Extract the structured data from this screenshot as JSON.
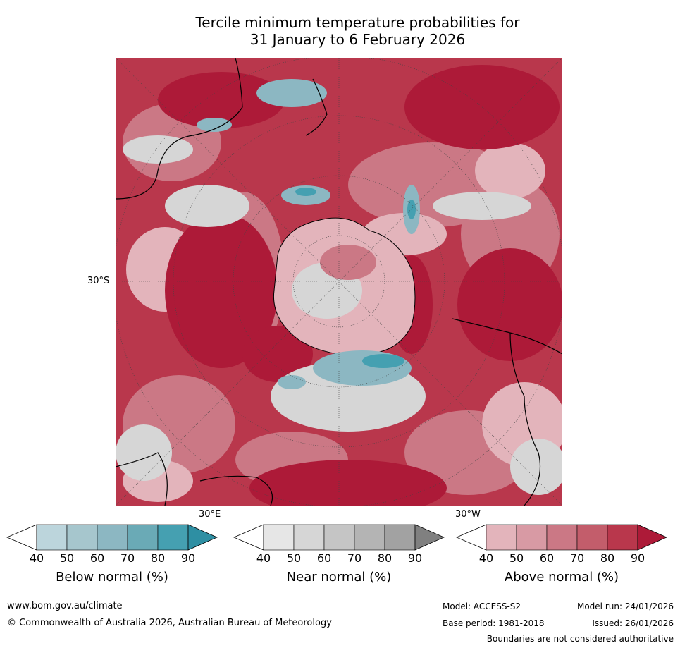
{
  "title_line1": "Tercile minimum temperature probabilities for",
  "title_line2": "31 January to 6 February 2026",
  "axis_labels": {
    "lat": "30°S",
    "lon_east": "30°E",
    "lon_west": "30°W"
  },
  "legend": [
    {
      "title": "Below normal (%)",
      "ticks": [
        "40",
        "50",
        "60",
        "70",
        "80",
        "90"
      ],
      "colors": [
        "#ffffff",
        "#bcd5dc",
        "#a6c6cd",
        "#8cb7c2",
        "#6aaab6",
        "#45a0b1",
        "#2e8fa3"
      ]
    },
    {
      "title": "Near normal (%)",
      "ticks": [
        "40",
        "50",
        "60",
        "70",
        "80",
        "90"
      ],
      "colors": [
        "#ffffff",
        "#e6e6e6",
        "#d6d6d6",
        "#c5c5c5",
        "#b4b4b4",
        "#a2a2a2",
        "#808080"
      ]
    },
    {
      "title": "Above normal (%)",
      "ticks": [
        "40",
        "50",
        "60",
        "70",
        "80",
        "90"
      ],
      "colors": [
        "#ffffff",
        "#e3b4bb",
        "#d89aa4",
        "#cb7885",
        "#c35d6b",
        "#b9374c",
        "#ad1a38"
      ]
    }
  ],
  "footer": {
    "website": "www.bom.gov.au/climate",
    "copyright": "© Commonwealth of Australia 2026, Australian Bureau of Meteorology",
    "model": "Model: ACCESS-S2",
    "base_period": "Base period: 1981-2018",
    "model_run": "Model run: 24/01/2026",
    "issued": "Issued: 26/01/2026",
    "disclaimer": "Boundaries are not considered authoritative"
  }
}
